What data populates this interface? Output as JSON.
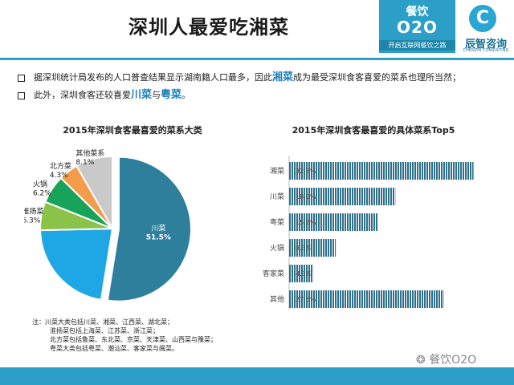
{
  "header": {
    "title": "深圳人最爱吃湘菜",
    "logo": {
      "brand": "餐饮",
      "o2o": "O2O",
      "slogan": "开启互联网餐饮之路"
    },
    "company": {
      "mark": "C",
      "name": "辰智咨询",
      "sub": "CHENZHI CONSULTING"
    }
  },
  "bullets": [
    {
      "pre": "据深圳统计局发布的人口普查结果显示湖南籍人口最多，因此",
      "hl1": "湘菜",
      "post": "成为最受深圳食客喜爱的菜系也理所当然；"
    },
    {
      "pre": "此外，深圳食客还较喜爱",
      "hl1": "川菜",
      "mid": "与",
      "hl2": "粤菜",
      "post": "。"
    }
  ],
  "colors": {
    "accent": "#2b9fc7",
    "highlight": "#1b7fb6"
  },
  "chart_data": [
    {
      "type": "pie",
      "title": "2015年深圳食客最喜爱的菜系大类",
      "slices": [
        {
          "label": "川菜",
          "value_text": "51.5%",
          "value": 51.5,
          "color": "#2e7f9c"
        },
        {
          "label": "粤菜",
          "value_text": "21.7%",
          "value": 21.7,
          "color": "#1ea7e4"
        },
        {
          "label": "淮扬菜",
          "value_text": "6.3%",
          "value": 6.3,
          "color": "#8bc34a"
        },
        {
          "label": "火锅",
          "value_text": "6.2%",
          "value": 6.2,
          "color": "#17a35a"
        },
        {
          "label": "北方菜",
          "value_text": "4.3%",
          "value": 4.3,
          "color": "#f39c4a"
        },
        {
          "label": "其他菜系",
          "value_text": "8.1%",
          "value": 8.1,
          "color": "#c9c9c9"
        }
      ]
    },
    {
      "type": "bar",
      "orientation": "horizontal",
      "title": "2015年深圳食客最喜爱的具体菜系Top5",
      "categories": [
        "湘菜",
        "川菜",
        "粤菜",
        "火锅",
        "客家菜",
        "其他"
      ],
      "values": [
        32.8,
        18.9,
        15.8,
        8.3,
        4.3,
        27.5
      ],
      "value_labels": [
        "32.8%",
        "18.9%",
        "15.8%",
        "8.3%",
        "4.3%",
        "27.5%"
      ],
      "bar_color": "#2e6f8a"
    }
  ],
  "note": {
    "lead": "注：",
    "lines": [
      "川菜大类包括川菜、湘菜、江西菜、湖北菜；",
      "淮扬菜包括上海菜、江苏菜、浙江菜；",
      "北方菜包括鲁菜、东北菜、京菜、天津菜、山西菜与豫菜；",
      "粤菜大类包括粤菜、潮汕菜、客家菜与闽菜。"
    ]
  },
  "watermark": "餐饮O2O"
}
